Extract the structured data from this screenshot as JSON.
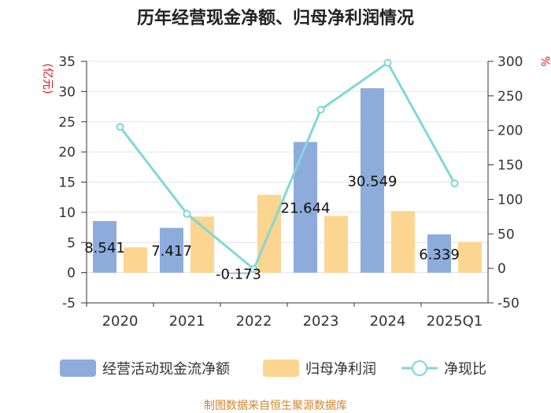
{
  "chart_data": {
    "type": "bar",
    "title": "历年经营现金净额、归母净利润情况",
    "categories": [
      "2020",
      "2021",
      "2022",
      "2023",
      "2024",
      "2025Q1"
    ],
    "series": [
      {
        "name": "经营活动现金流净额",
        "type": "bar",
        "axis": "left",
        "color": "#8eacdb",
        "values": [
          8.541,
          7.417,
          -0.173,
          21.644,
          30.549,
          6.339
        ],
        "labels": [
          "8.541",
          "7.417",
          "-0.173",
          "21.644",
          "30.549",
          "6.339"
        ]
      },
      {
        "name": "归母净利润",
        "type": "bar",
        "axis": "left",
        "color": "#fcd590",
        "values": [
          4.2,
          9.3,
          12.9,
          9.4,
          10.2,
          5.1
        ]
      },
      {
        "name": "净现比",
        "type": "line",
        "axis": "right",
        "color": "#82d7d8",
        "values": [
          205,
          79,
          -1,
          230,
          298,
          123
        ]
      }
    ],
    "y_left": {
      "unit": "(亿元)",
      "min": -5,
      "max": 35,
      "ticks": [
        -5,
        0,
        5,
        10,
        15,
        20,
        25,
        30,
        35
      ]
    },
    "y_right": {
      "unit": "%",
      "min": -50,
      "max": 300,
      "ticks": [
        -50,
        0,
        50,
        100,
        150,
        200,
        250,
        300
      ]
    },
    "legend_position": "bottom",
    "source": "制图数据来自恒生聚源数据库"
  }
}
